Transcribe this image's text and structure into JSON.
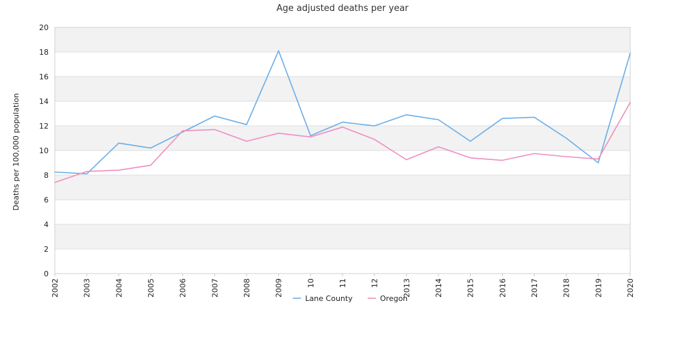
{
  "chart_data": {
    "type": "line",
    "title": "Age adjusted deaths per year",
    "xlabel": "",
    "ylabel": "Deaths per 100,000 population",
    "categories": [
      "2002",
      "2003",
      "2004",
      "2005",
      "2006",
      "2007",
      "2008",
      "2009",
      "10",
      "11",
      "12",
      "2013",
      "2014",
      "2015",
      "2016",
      "2017",
      "2018",
      "2019",
      "2020"
    ],
    "ylim": [
      0,
      20
    ],
    "yticks": [
      0,
      2,
      4,
      6,
      8,
      10,
      12,
      14,
      16,
      18,
      20
    ],
    "grid": true,
    "legend_position": "bottom",
    "series": [
      {
        "name": "Lane County",
        "color": "#6aaee8",
        "values": [
          8.25,
          8.1,
          10.6,
          10.2,
          11.5,
          12.8,
          12.1,
          18.1,
          11.2,
          12.3,
          12.0,
          12.9,
          12.5,
          10.75,
          12.6,
          12.7,
          11.0,
          9.0,
          17.9
        ]
      },
      {
        "name": "Oregon",
        "color": "#ee8fc0",
        "values": [
          7.4,
          8.3,
          8.4,
          8.8,
          11.6,
          11.7,
          10.75,
          11.4,
          11.1,
          11.9,
          10.9,
          9.25,
          10.3,
          9.4,
          9.2,
          9.75,
          9.5,
          9.3,
          13.9
        ]
      }
    ]
  }
}
